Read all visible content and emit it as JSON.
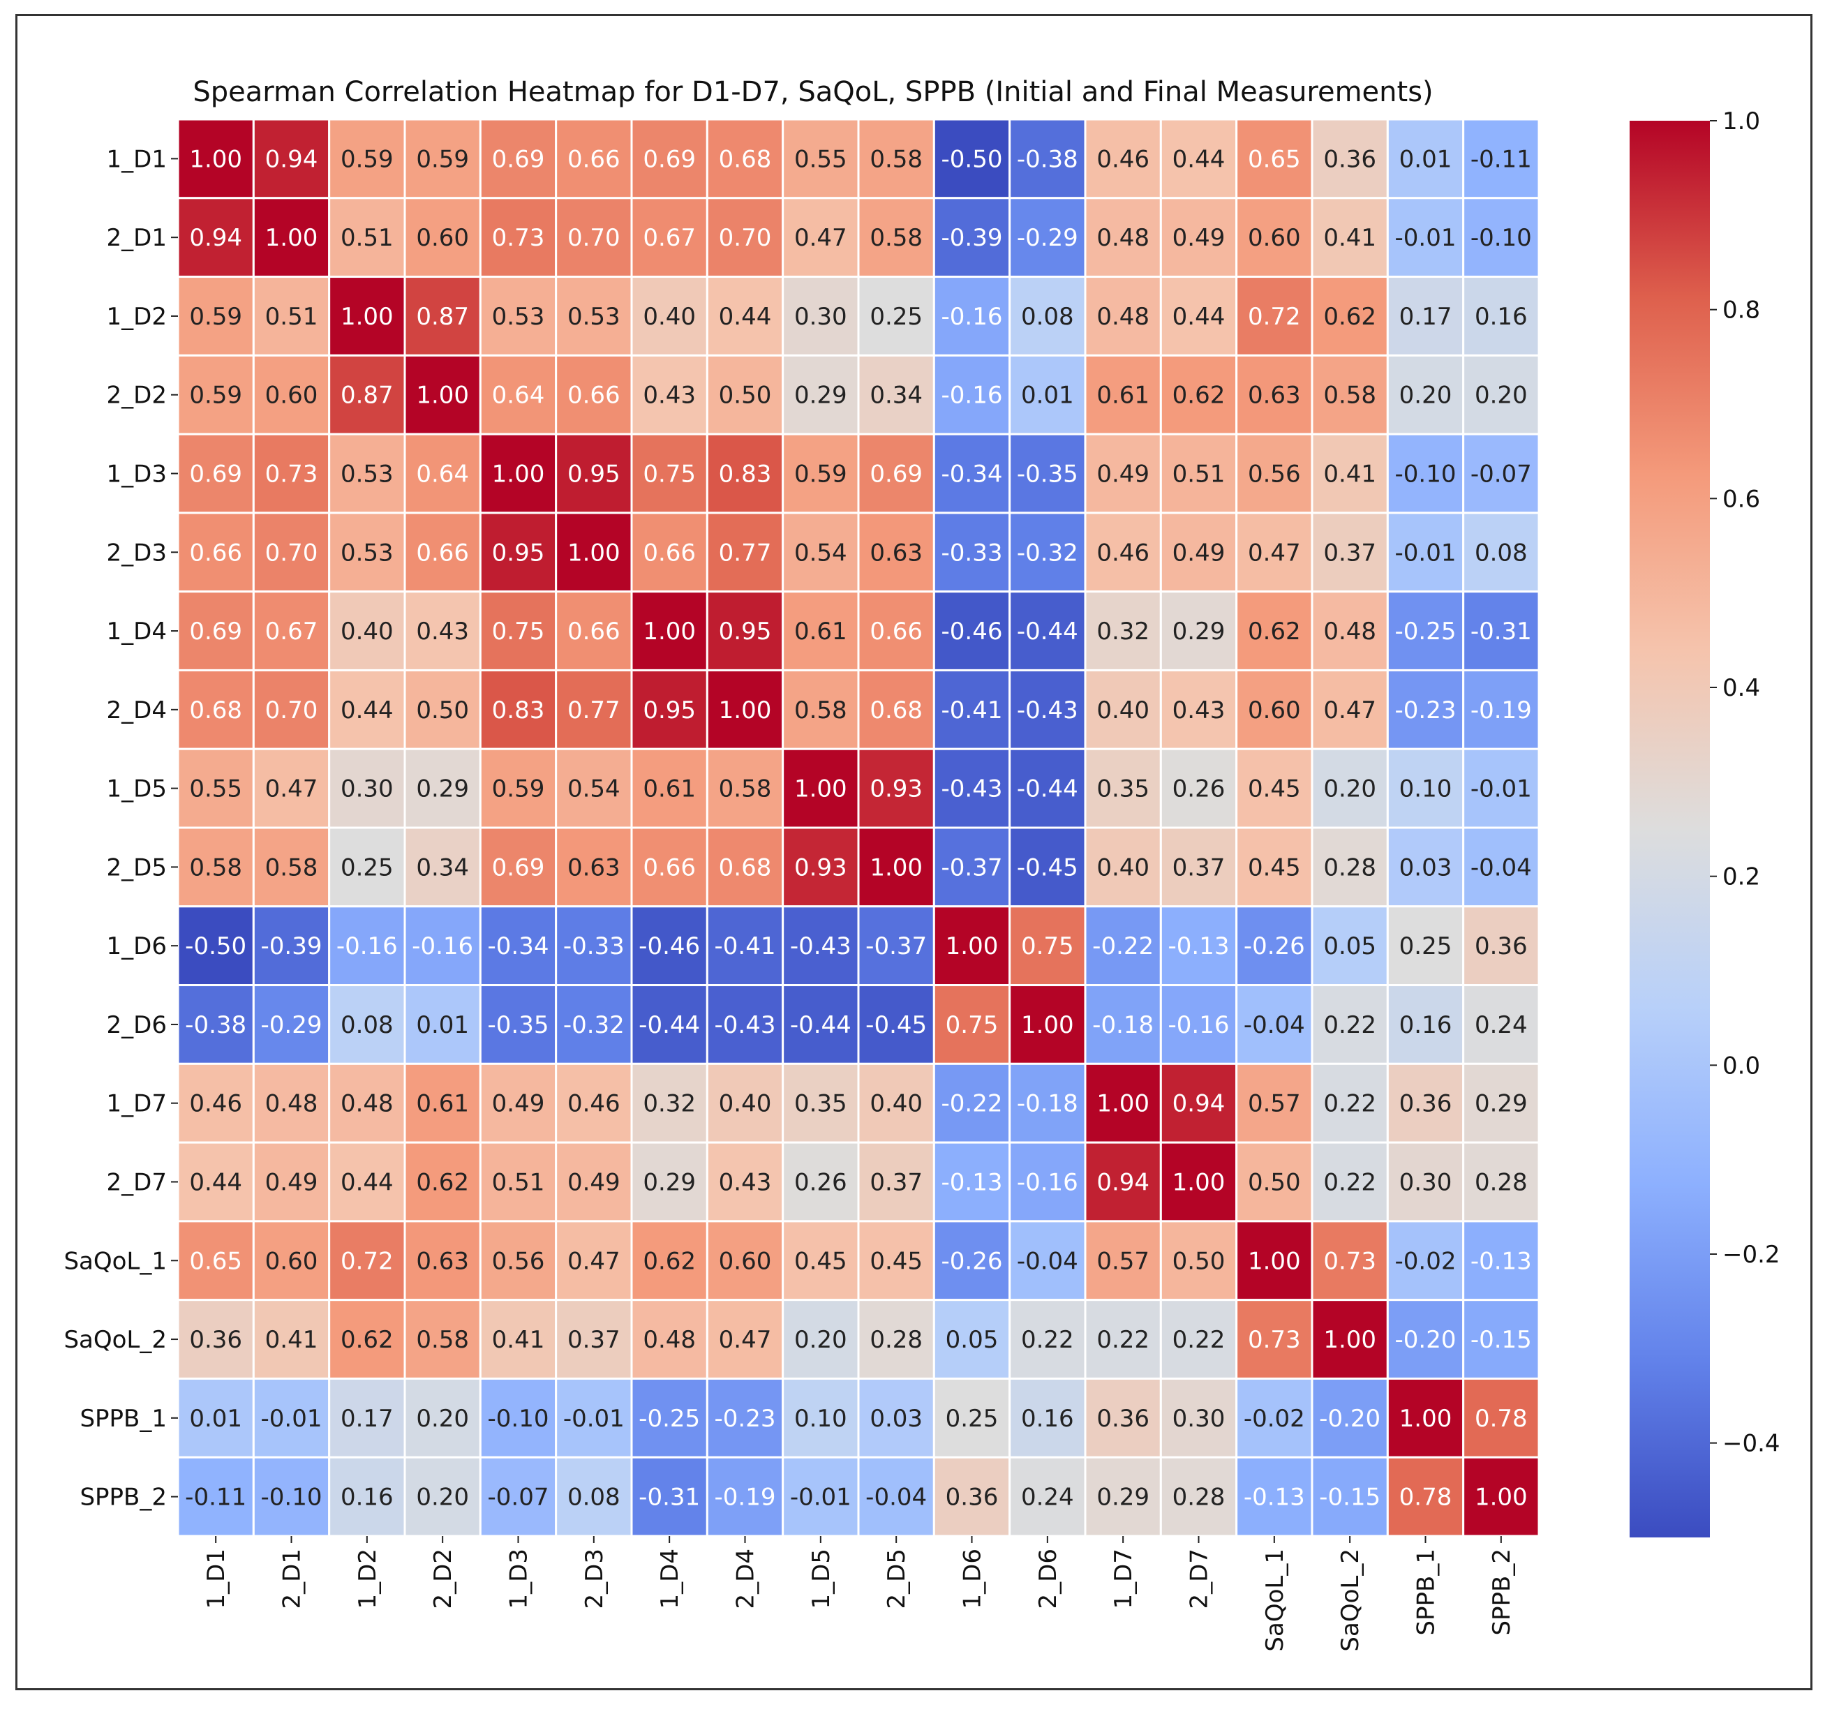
{
  "chart_data": {
    "type": "heatmap",
    "title": "Spearman Correlation Heatmap for D1-D7, SaQoL, SPPB (Initial and Final Measurements)",
    "labels": [
      "1_D1",
      "2_D1",
      "1_D2",
      "2_D2",
      "1_D3",
      "2_D3",
      "1_D4",
      "2_D4",
      "1_D5",
      "2_D5",
      "1_D6",
      "2_D6",
      "1_D7",
      "2_D7",
      "SaQoL_1",
      "SaQoL_2",
      "SPPB_1",
      "SPPB_2"
    ],
    "matrix": [
      [
        1.0,
        0.94,
        0.59,
        0.59,
        0.69,
        0.66,
        0.69,
        0.68,
        0.55,
        0.58,
        -0.5,
        -0.38,
        0.46,
        0.44,
        0.65,
        0.36,
        0.01,
        -0.11
      ],
      [
        0.94,
        1.0,
        0.51,
        0.6,
        0.73,
        0.7,
        0.67,
        0.7,
        0.47,
        0.58,
        -0.39,
        -0.29,
        0.48,
        0.49,
        0.6,
        0.41,
        -0.01,
        -0.1
      ],
      [
        0.59,
        0.51,
        1.0,
        0.87,
        0.53,
        0.53,
        0.4,
        0.44,
        0.3,
        0.25,
        -0.16,
        0.08,
        0.48,
        0.44,
        0.72,
        0.62,
        0.17,
        0.16
      ],
      [
        0.59,
        0.6,
        0.87,
        1.0,
        0.64,
        0.66,
        0.43,
        0.5,
        0.29,
        0.34,
        -0.16,
        0.01,
        0.61,
        0.62,
        0.63,
        0.58,
        0.2,
        0.2
      ],
      [
        0.69,
        0.73,
        0.53,
        0.64,
        1.0,
        0.95,
        0.75,
        0.83,
        0.59,
        0.69,
        -0.34,
        -0.35,
        0.49,
        0.51,
        0.56,
        0.41,
        -0.1,
        -0.07
      ],
      [
        0.66,
        0.7,
        0.53,
        0.66,
        0.95,
        1.0,
        0.66,
        0.77,
        0.54,
        0.63,
        -0.33,
        -0.32,
        0.46,
        0.49,
        0.47,
        0.37,
        -0.01,
        0.08
      ],
      [
        0.69,
        0.67,
        0.4,
        0.43,
        0.75,
        0.66,
        1.0,
        0.95,
        0.61,
        0.66,
        -0.46,
        -0.44,
        0.32,
        0.29,
        0.62,
        0.48,
        -0.25,
        -0.31
      ],
      [
        0.68,
        0.7,
        0.44,
        0.5,
        0.83,
        0.77,
        0.95,
        1.0,
        0.58,
        0.68,
        -0.41,
        -0.43,
        0.4,
        0.43,
        0.6,
        0.47,
        -0.23,
        -0.19
      ],
      [
        0.55,
        0.47,
        0.3,
        0.29,
        0.59,
        0.54,
        0.61,
        0.58,
        1.0,
        0.93,
        -0.43,
        -0.44,
        0.35,
        0.26,
        0.45,
        0.2,
        0.1,
        -0.01
      ],
      [
        0.58,
        0.58,
        0.25,
        0.34,
        0.69,
        0.63,
        0.66,
        0.68,
        0.93,
        1.0,
        -0.37,
        -0.45,
        0.4,
        0.37,
        0.45,
        0.28,
        0.03,
        -0.04
      ],
      [
        -0.5,
        -0.39,
        -0.16,
        -0.16,
        -0.34,
        -0.33,
        -0.46,
        -0.41,
        -0.43,
        -0.37,
        1.0,
        0.75,
        -0.22,
        -0.13,
        -0.26,
        0.05,
        0.25,
        0.36
      ],
      [
        -0.38,
        -0.29,
        0.08,
        0.01,
        -0.35,
        -0.32,
        -0.44,
        -0.43,
        -0.44,
        -0.45,
        0.75,
        1.0,
        -0.18,
        -0.16,
        -0.04,
        0.22,
        0.16,
        0.24
      ],
      [
        0.46,
        0.48,
        0.48,
        0.61,
        0.49,
        0.46,
        0.32,
        0.4,
        0.35,
        0.4,
        -0.22,
        -0.18,
        1.0,
        0.94,
        0.57,
        0.22,
        0.36,
        0.29
      ],
      [
        0.44,
        0.49,
        0.44,
        0.62,
        0.51,
        0.49,
        0.29,
        0.43,
        0.26,
        0.37,
        -0.13,
        -0.16,
        0.94,
        1.0,
        0.5,
        0.22,
        0.3,
        0.28
      ],
      [
        0.65,
        0.6,
        0.72,
        0.63,
        0.56,
        0.47,
        0.62,
        0.6,
        0.45,
        0.45,
        -0.26,
        -0.04,
        0.57,
        0.5,
        1.0,
        0.73,
        -0.02,
        -0.13
      ],
      [
        0.36,
        0.41,
        0.62,
        0.58,
        0.41,
        0.37,
        0.48,
        0.47,
        0.2,
        0.28,
        0.05,
        0.22,
        0.22,
        0.22,
        0.73,
        1.0,
        -0.2,
        -0.15
      ],
      [
        0.01,
        -0.01,
        0.17,
        0.2,
        -0.1,
        -0.01,
        -0.25,
        -0.23,
        0.1,
        0.03,
        0.25,
        0.16,
        0.36,
        0.3,
        -0.02,
        -0.2,
        1.0,
        0.78
      ],
      [
        -0.11,
        -0.1,
        0.16,
        0.2,
        -0.07,
        0.08,
        -0.31,
        -0.19,
        -0.01,
        -0.04,
        0.36,
        0.24,
        0.29,
        0.28,
        -0.13,
        -0.15,
        0.78,
        1.0
      ]
    ],
    "vmin": -0.5,
    "vmax": 1.0,
    "colormap": "coolwarm",
    "colorbar_ticks": [
      1.0,
      0.8,
      0.6,
      0.4,
      0.2,
      0.0,
      -0.2,
      -0.4
    ],
    "colorbar_tick_labels": [
      "1.0",
      "0.8",
      "0.6",
      "0.4",
      "0.2",
      "0.0",
      "−0.2",
      "−0.4"
    ],
    "grid_color": "#ffffff",
    "xlabel": "",
    "ylabel": ""
  }
}
